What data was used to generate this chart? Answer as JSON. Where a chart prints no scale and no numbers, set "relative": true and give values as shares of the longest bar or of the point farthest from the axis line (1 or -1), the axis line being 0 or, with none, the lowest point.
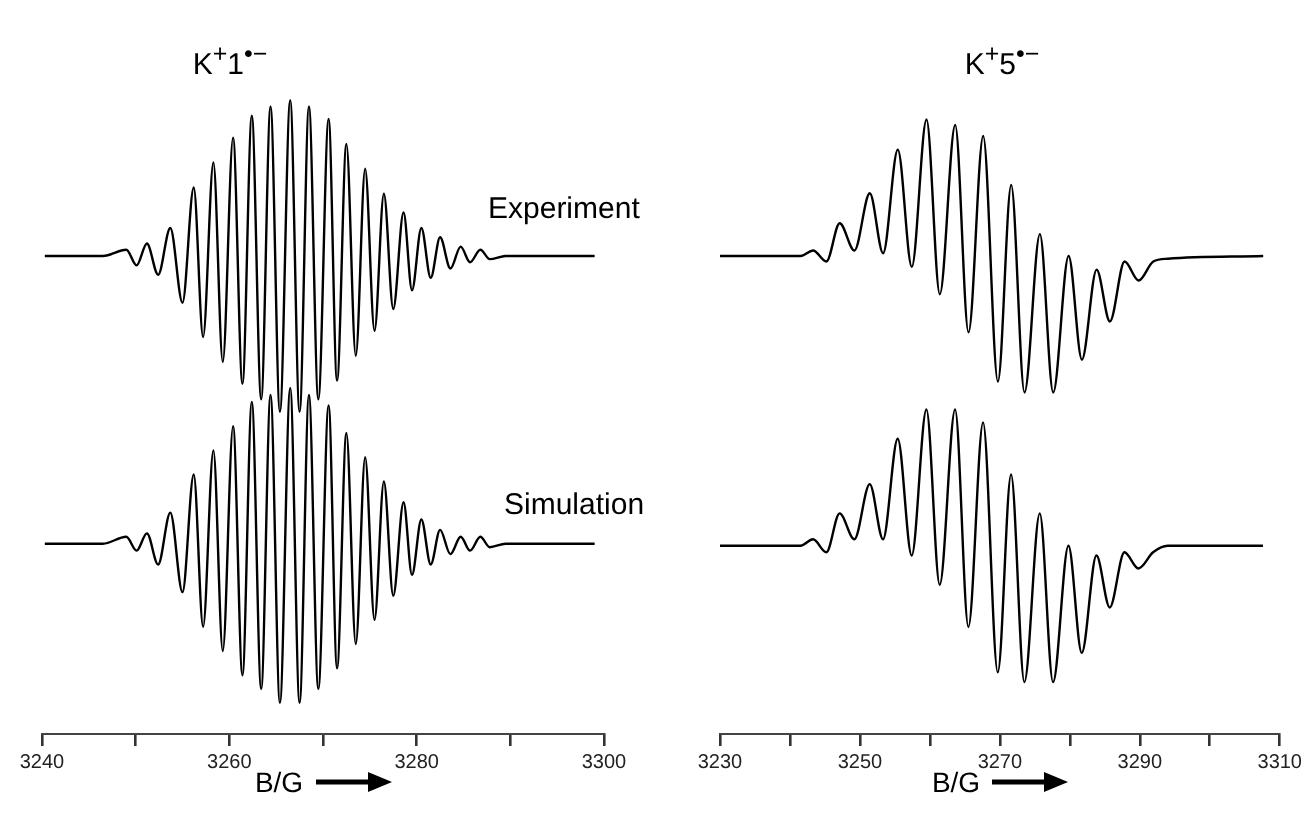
{
  "chart_data": [
    {
      "type": "line",
      "title": "K$^{+}$1$^{•−}$",
      "relative": true,
      "xlim": [
        3240,
        3300
      ],
      "tick_labels": false,
      "series": [
        {
          "name": "Experiment",
          "color": "#000000",
          "x": [
            3240.3,
            3246.5,
            3249.0,
            3250.1,
            3251.2,
            3252.4,
            3253.7,
            3255.0,
            3256.2,
            3257.2,
            3258.3,
            3259.3,
            3260.4,
            3261.4,
            3262.4,
            3263.4,
            3264.4,
            3265.4,
            3266.5,
            3267.5,
            3268.5,
            3269.5,
            3270.6,
            3271.5,
            3272.5,
            3273.5,
            3274.5,
            3275.5,
            3276.5,
            3277.5,
            3278.6,
            3279.5,
            3280.5,
            3281.5,
            3282.5,
            3283.6,
            3284.7,
            3285.7,
            3286.8,
            3287.8,
            3289.5,
            3299.0
          ],
          "values": [
            0.5,
            0.5,
            0.52,
            0.47,
            0.54,
            0.44,
            0.59,
            0.35,
            0.72,
            0.24,
            0.8,
            0.16,
            0.88,
            0.09,
            0.95,
            0.04,
            0.98,
            0,
            1,
            0,
            0.98,
            0.04,
            0.94,
            0.1,
            0.86,
            0.18,
            0.78,
            0.26,
            0.7,
            0.33,
            0.64,
            0.39,
            0.59,
            0.43,
            0.56,
            0.46,
            0.53,
            0.48,
            0.52,
            0.49,
            0.5,
            0.5
          ]
        }
      ]
    },
    {
      "type": "line",
      "title": "K$^{+}$5$^{•−}$",
      "relative": true,
      "xlim": [
        3230,
        3310
      ],
      "tick_labels": false,
      "series": [
        {
          "color": "#000000",
          "x": [
            3230.0,
            3241.5,
            3243.3,
            3245.2,
            3247.1,
            3249.2,
            3251.4,
            3253.3,
            3255.4,
            3257.4,
            3259.5,
            3261.4,
            3263.6,
            3265.5,
            3267.6,
            3269.7,
            3271.6,
            3273.5,
            3275.7,
            3277.6,
            3279.8,
            3281.7,
            3283.8,
            3285.7,
            3287.8,
            3289.8,
            3291.9,
            3294.0,
            3307.6
          ],
          "values": [
            0.5,
            0.5,
            0.52,
            0.48,
            0.62,
            0.52,
            0.73,
            0.51,
            0.89,
            0.46,
            1,
            0.36,
            0.98,
            0.22,
            0.94,
            0.04,
            0.76,
            0,
            0.58,
            0,
            0.5,
            0.12,
            0.45,
            0.26,
            0.48,
            0.41,
            0.48,
            0.49,
            0.5
          ]
        }
      ]
    },
    {
      "type": "line",
      "relative": true,
      "xlabel": "B/G",
      "xlim": [
        3240,
        3300
      ],
      "xticks": [
        3240,
        {
          "value": 3250,
          "label": null
        },
        3260,
        {
          "value": 3270,
          "label": null
        },
        3280,
        {
          "value": 3290,
          "label": null
        },
        3300
      ],
      "series": [
        {
          "name": "Simulation",
          "color": "#000000",
          "x": [
            3240.3,
            3246.5,
            3249.0,
            3250.1,
            3251.2,
            3252.4,
            3253.7,
            3255.0,
            3256.2,
            3257.2,
            3258.3,
            3259.3,
            3260.4,
            3261.4,
            3262.4,
            3263.4,
            3264.4,
            3265.4,
            3266.5,
            3267.5,
            3268.5,
            3269.5,
            3270.6,
            3271.5,
            3272.5,
            3273.5,
            3274.5,
            3275.5,
            3276.5,
            3277.5,
            3278.6,
            3279.5,
            3280.5,
            3281.5,
            3282.5,
            3283.6,
            3284.7,
            3285.7,
            3286.8,
            3287.8,
            3289.5,
            3299.0
          ],
          "values": [
            0.55,
            0.55,
            0.57,
            0.53,
            0.58,
            0.49,
            0.64,
            0.41,
            0.75,
            0.31,
            0.82,
            0.24,
            0.89,
            0.17,
            0.96,
            0.13,
            0.98,
            0.09,
            1,
            0.09,
            0.98,
            0.13,
            0.95,
            0.19,
            0.87,
            0.26,
            0.8,
            0.33,
            0.73,
            0.4,
            0.67,
            0.46,
            0.62,
            0.49,
            0.59,
            0.52,
            0.57,
            0.53,
            0.57,
            0.54,
            0.55,
            0.55
          ]
        }
      ]
    },
    {
      "type": "line",
      "relative": true,
      "xlabel": "B/G",
      "xlim": [
        3230,
        3310
      ],
      "xticks": [
        3230,
        {
          "value": 3240,
          "label": null
        },
        3250,
        {
          "value": 3260,
          "label": null
        },
        3270,
        {
          "value": 3280,
          "label": null
        },
        3290,
        {
          "value": 3300,
          "label": null
        },
        3310
      ],
      "series": [
        {
          "color": "#000000",
          "x": [
            3230.0,
            3241.5,
            3243.3,
            3245.2,
            3247.1,
            3249.2,
            3251.4,
            3253.3,
            3255.4,
            3257.4,
            3259.5,
            3261.4,
            3263.6,
            3265.5,
            3267.6,
            3269.7,
            3271.6,
            3273.5,
            3275.7,
            3277.6,
            3279.8,
            3281.7,
            3283.8,
            3285.7,
            3287.8,
            3289.8,
            3291.9,
            3294.0,
            3307.6
          ],
          "values": [
            0.58,
            0.58,
            0.6,
            0.56,
            0.68,
            0.6,
            0.77,
            0.6,
            0.91,
            0.55,
            1,
            0.46,
            1,
            0.33,
            0.96,
            0.19,
            0.8,
            0.16,
            0.68,
            0.16,
            0.58,
            0.25,
            0.55,
            0.39,
            0.56,
            0.51,
            0.56,
            0.58,
            0.58
          ]
        }
      ]
    }
  ]
}
